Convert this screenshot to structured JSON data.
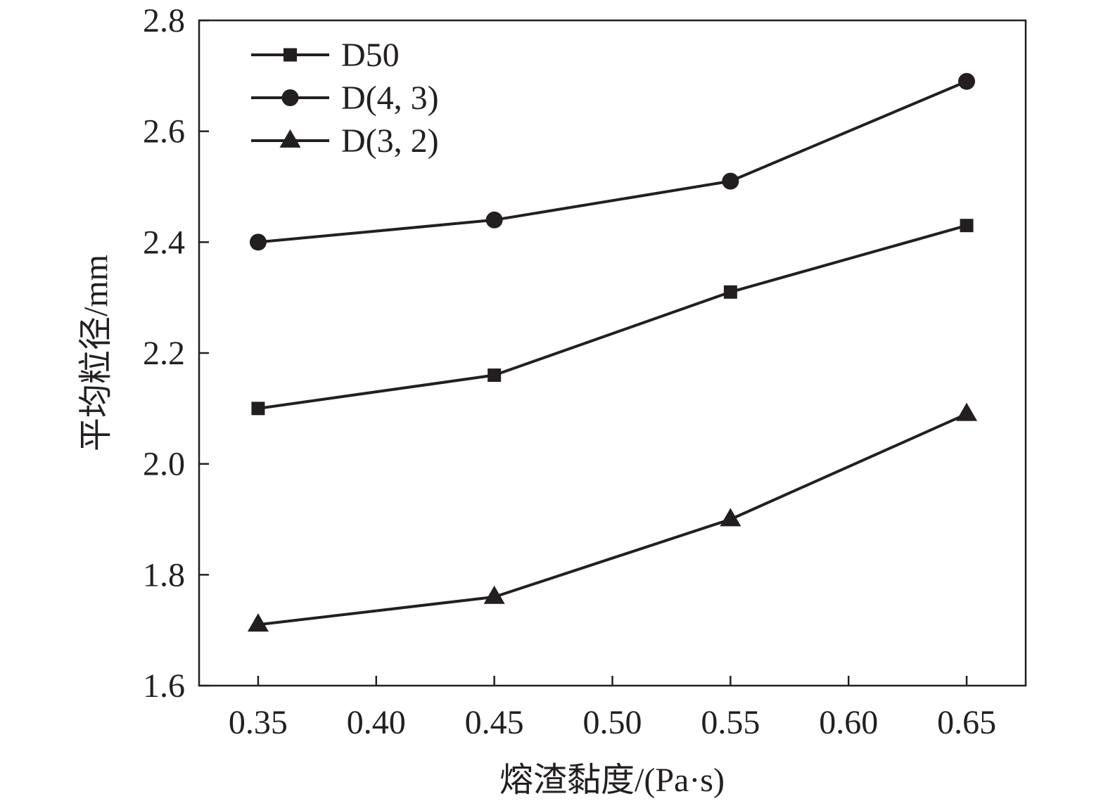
{
  "chart_data": {
    "type": "line",
    "title": "",
    "xlabel": "熔渣黏度/(Pa·s)",
    "ylabel": "平均粒径/mm",
    "xlim": [
      0.325,
      0.675
    ],
    "ylim": [
      1.6,
      2.8
    ],
    "xticks": [
      0.35,
      0.4,
      0.45,
      0.5,
      0.55,
      0.6,
      0.65
    ],
    "xtick_labels": [
      "0.35",
      "0.40",
      "0.45",
      "0.50",
      "0.55",
      "0.60",
      "0.65"
    ],
    "yticks": [
      1.6,
      1.8,
      2.0,
      2.2,
      2.4,
      2.6,
      2.8
    ],
    "ytick_labels": [
      "1.6",
      "1.8",
      "2.0",
      "2.2",
      "2.4",
      "2.6",
      "2.8"
    ],
    "grid": false,
    "legend_position": "top-left",
    "x": [
      0.35,
      0.45,
      0.55,
      0.65
    ],
    "series": [
      {
        "name": "D50",
        "marker": "square",
        "color": "#231f20",
        "values": [
          2.1,
          2.16,
          2.31,
          2.43
        ]
      },
      {
        "name": "D(4, 3)",
        "marker": "circle",
        "color": "#231f20",
        "values": [
          2.4,
          2.44,
          2.51,
          2.69
        ]
      },
      {
        "name": "D(3, 2)",
        "marker": "triangle",
        "color": "#231f20",
        "values": [
          1.71,
          1.76,
          1.9,
          2.09
        ]
      }
    ]
  }
}
